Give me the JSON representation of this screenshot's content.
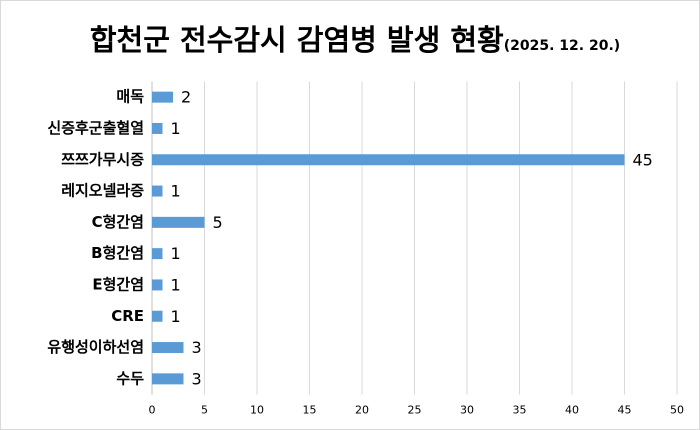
{
  "chart_data": {
    "type": "bar",
    "orientation": "horizontal",
    "title": "합천군 전수감시 감염병 발생 현황",
    "subtitle": "(2025. 12. 20.)",
    "categories": [
      "매독",
      "신증후군출혈열",
      "쯔쯔가무시증",
      "레지오넬라증",
      "C형간염",
      "B형간염",
      "E형간염",
      "CRE",
      "유행성이하선염",
      "수두"
    ],
    "values": [
      2,
      1,
      45,
      1,
      5,
      1,
      1,
      1,
      3,
      3
    ],
    "color": "#5b9bd5",
    "xlim": [
      0,
      50
    ],
    "xticks": [
      0,
      5,
      10,
      15,
      20,
      25,
      30,
      35,
      40,
      45,
      50
    ],
    "grid": true
  }
}
